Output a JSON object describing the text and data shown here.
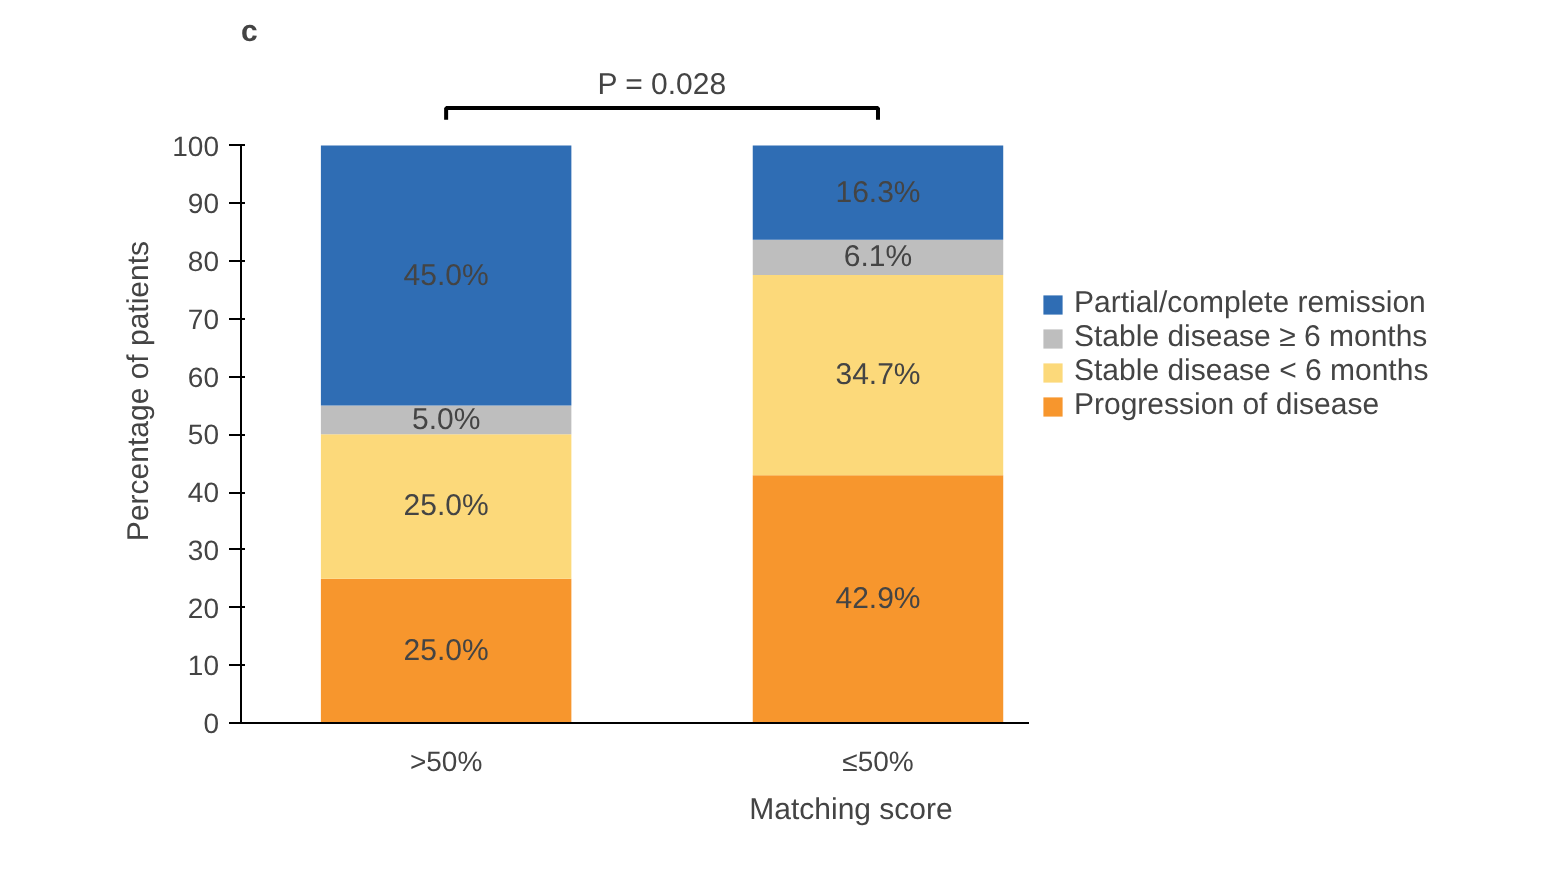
{
  "chart_data": {
    "type": "bar",
    "title": "c",
    "xlabel": "Matching score",
    "ylabel": "Percentage of patients",
    "categories": [
      ">50%",
      "≤50%"
    ],
    "stacked": true,
    "series": [
      {
        "name": "Progression of disease",
        "color": "#f7962d",
        "values": [
          25.0,
          42.9
        ],
        "value_labels": [
          "25.0%",
          "42.9%"
        ]
      },
      {
        "name": "Stable disease < 6 months",
        "color": "#fcd97a",
        "values": [
          25.0,
          34.7
        ],
        "value_labels": [
          "25.0%",
          "34.7%"
        ]
      },
      {
        "name": "Stable disease ≥ 6 months",
        "color": "#bebebe",
        "values": [
          5.0,
          6.1
        ],
        "value_labels": [
          "5.0%",
          "6.1%"
        ]
      },
      {
        "name": "Partial/complete remission",
        "color": "#2f6db4",
        "values": [
          45.0,
          16.3
        ],
        "value_labels": [
          "45.0%",
          "16.3%"
        ]
      }
    ],
    "ylim": [
      0,
      100
    ],
    "yticks": [
      0,
      10,
      20,
      30,
      40,
      50,
      60,
      70,
      80,
      90,
      100
    ],
    "grid": false,
    "legend": "right",
    "annotations": [
      "P = 0.028"
    ]
  }
}
